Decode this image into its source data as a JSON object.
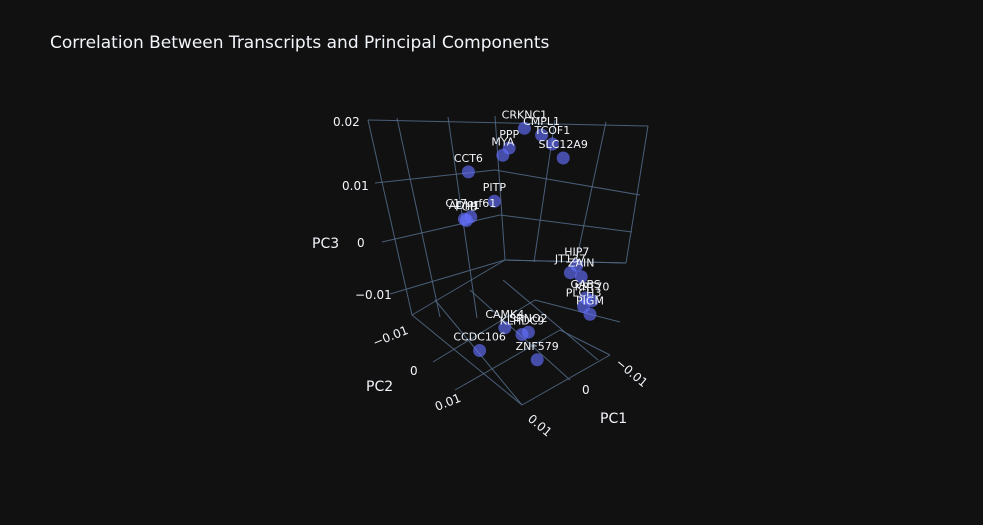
{
  "chart_data": {
    "type": "scatter",
    "title": "Correlation Between Transcripts and Principal Components",
    "axes": {
      "x": {
        "title": "PC1",
        "ticks": [
          "−0.01",
          "0",
          "0.01"
        ]
      },
      "y": {
        "title": "PC2",
        "ticks": [
          "−0.01",
          "0",
          "0.01"
        ]
      },
      "z": {
        "title": "PC3",
        "ticks": [
          "0.02",
          "0.01",
          "0",
          "−0.01"
        ]
      }
    },
    "points": [
      {
        "label": "TCOF1",
        "x": -0.006,
        "y": -0.002,
        "z": 0.021
      },
      {
        "label": "CMPL1",
        "x": -0.004,
        "y": -0.003,
        "z": 0.021
      },
      {
        "label": "SLC12A9",
        "x": -0.008,
        "y": -0.001,
        "z": 0.02
      },
      {
        "label": "CRKNC1",
        "x": -0.001,
        "y": -0.004,
        "z": 0.02
      },
      {
        "label": "PPP",
        "x": 0.002,
        "y": -0.006,
        "z": 0.013
      },
      {
        "label": "MYA",
        "x": 0.003,
        "y": -0.006,
        "z": 0.011
      },
      {
        "label": "HIP7",
        "x": -0.012,
        "y": 0.005,
        "z": 0.005
      },
      {
        "label": "ZAIN",
        "x": -0.013,
        "y": 0.006,
        "z": 0.004
      },
      {
        "label": "JT137",
        "x": -0.011,
        "y": 0.005,
        "z": 0.003
      },
      {
        "label": "KRT70",
        "x": -0.015,
        "y": 0.007,
        "z": 0.001
      },
      {
        "label": "GABS",
        "x": -0.014,
        "y": 0.007,
        "z": 0.001
      },
      {
        "label": "PLCH3",
        "x": -0.014,
        "y": 0.008,
        "z": 0.0
      },
      {
        "label": "PIGM",
        "x": -0.015,
        "y": 0.008,
        "z": -0.001
      },
      {
        "label": "PITP",
        "x": 0.004,
        "y": -0.005,
        "z": 0.002
      },
      {
        "label": "CCT6",
        "x": 0.009,
        "y": -0.008,
        "z": 0.003
      },
      {
        "label": "C17orf61",
        "x": 0.008,
        "y": -0.006,
        "z": -0.004
      },
      {
        "label": "ADH1",
        "x": 0.009,
        "y": -0.006,
        "z": -0.005
      },
      {
        "label": "FGB",
        "x": 0.009,
        "y": -0.007,
        "z": -0.006
      },
      {
        "label": "SRNO2",
        "x": -0.006,
        "y": 0.01,
        "z": -0.008
      },
      {
        "label": "KLHDC9",
        "x": -0.005,
        "y": 0.01,
        "z": -0.009
      },
      {
        "label": "CAMK4",
        "x": -0.002,
        "y": 0.009,
        "z": -0.01
      },
      {
        "label": "ZNF579",
        "x": -0.008,
        "y": 0.012,
        "z": -0.011
      },
      {
        "label": "CCDC106",
        "x": 0.001,
        "y": 0.012,
        "z": -0.014
      }
    ]
  }
}
